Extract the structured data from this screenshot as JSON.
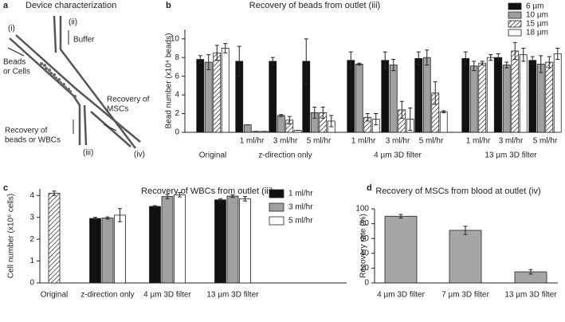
{
  "diagram": {
    "panel": "a",
    "title": "Device characterization",
    "inlet_1": "(i)",
    "inlet_2": "(ii)",
    "buffer": "Buffer",
    "sample": [
      "Beads",
      "or Cells"
    ],
    "outlet_msc": [
      "Recovery of",
      "MSCs"
    ],
    "outlet_wbc": [
      "Recovery of",
      "beads or WBCs"
    ],
    "outlet_3": "(iii)",
    "outlet_4": "(iv)"
  },
  "chart_data": [
    {
      "type": "bar",
      "panel": "b",
      "title": "Recovery of beads from outlet (iii)",
      "y_label": "Bead number (x10⁴ beads)",
      "categories": [
        "Original",
        "1 ml/hr",
        "3 ml/hr",
        "5 ml/hr",
        "1 ml/hr",
        "3 ml/hr",
        "5 ml/hr",
        "1 ml/hr",
        "3 ml/hr",
        "5 ml/hr"
      ],
      "groups": [
        "z-direction only",
        "4 µm 3D filter",
        "13 µm 3D filter"
      ],
      "ylim": [
        0,
        11
      ],
      "yticks": [
        0,
        2,
        4,
        6,
        8,
        10
      ],
      "series": [
        {
          "name": "6 µm",
          "color": "#111111",
          "values": [
            7.8,
            7.6,
            7.6,
            7.6,
            7.7,
            7.7,
            7.9,
            7.9,
            8.0,
            7.7
          ],
          "errors": [
            0.4,
            1.6,
            0.4,
            2.4,
            0.9,
            0.9,
            0.7,
            0.7,
            0.4,
            0.4
          ]
        },
        {
          "name": "10 µm",
          "color": "#a0a0a0",
          "values": [
            7.5,
            0.8,
            1.8,
            2.1,
            7.3,
            7.2,
            8.0,
            7.1,
            7.2,
            7.3
          ],
          "errors": [
            0.8,
            0,
            0.1,
            0.6,
            0.1,
            0.6,
            0.8,
            0.5,
            0.3,
            0.9
          ]
        },
        {
          "name": "15 µm",
          "color": "#ffffff",
          "hatch": true,
          "values": [
            8.5,
            0.1,
            1.3,
            2.1,
            1.6,
            2.4,
            4.2,
            7.4,
            8.7,
            7.5
          ],
          "errors": [
            0.8,
            0,
            0.4,
            0.6,
            0.4,
            0.9,
            1.2,
            0.2,
            0.9,
            0.6
          ]
        },
        {
          "name": "18 µm",
          "color": "#ffffff",
          "values": [
            9.0,
            0.1,
            0.2,
            1.2,
            1.4,
            1.4,
            2.2,
            8.0,
            8.3,
            8.4
          ],
          "errors": [
            0.5,
            0,
            0,
            0.6,
            0.6,
            1.2,
            0.1,
            0.3,
            0.7,
            0.6
          ]
        }
      ]
    },
    {
      "type": "bar",
      "panel": "c",
      "title": "Recovery of WBCs from outlet (iii)",
      "y_label": "Cell number (x10⁶ cells)",
      "categories": [
        "Original",
        "z-direction only",
        "4 µm 3D filter",
        "13 µm 3D filter"
      ],
      "ylim": [
        0,
        4.3
      ],
      "yticks": [
        0,
        1,
        2,
        3,
        4
      ],
      "reference_bar": {
        "value": 4.1,
        "error": 0.1,
        "hatch": true
      },
      "series": [
        {
          "name": "1 ml/hr",
          "color": "#111111",
          "values": [
            null,
            2.95,
            3.5,
            3.8
          ],
          "errors": [
            null,
            0.05,
            0.03,
            0.05
          ]
        },
        {
          "name": "3 ml/hr",
          "color": "#a0a0a0",
          "values": [
            null,
            2.97,
            3.95,
            3.97
          ],
          "errors": [
            null,
            0.05,
            0.1,
            0.06
          ]
        },
        {
          "name": "5 ml/hr",
          "color": "#ffffff",
          "values": [
            null,
            3.1,
            4.03,
            3.85
          ],
          "errors": [
            null,
            0.3,
            0.1,
            0.1
          ]
        }
      ]
    },
    {
      "type": "bar",
      "panel": "d",
      "title": "Recovery of MSCs from blood at outlet (iv)",
      "y_label": "Recovery rate (%)",
      "categories": [
        "4 µm 3D filter",
        "7 µm 3D filter",
        "13 µm 3D filter"
      ],
      "ylim": [
        0,
        100
      ],
      "yticks": [
        0,
        20,
        40,
        60,
        80,
        100
      ],
      "color": "#a6a6a6",
      "values": [
        90,
        71,
        15
      ],
      "errors": [
        2.5,
        5.5,
        3
      ]
    }
  ]
}
